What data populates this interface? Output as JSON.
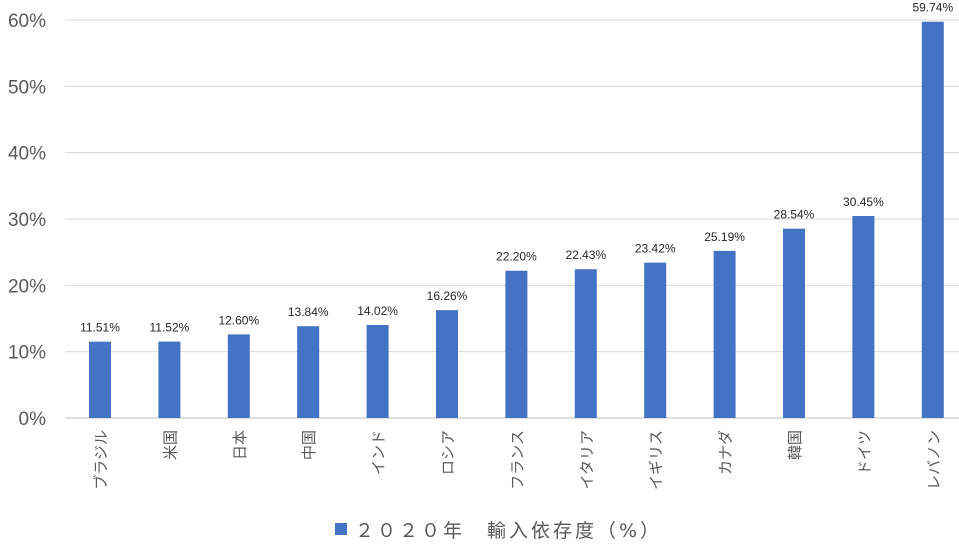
{
  "chart_data": {
    "type": "bar",
    "categories": [
      "ブラジル",
      "米国",
      "日本",
      "中国",
      "インド",
      "ロシア",
      "フランス",
      "イタリア",
      "イギリス",
      "カナダ",
      "韓国",
      "ドイツ",
      "レバノン"
    ],
    "series": [
      {
        "name": "２０２０年　輸入依存度（%）",
        "values": [
          11.51,
          11.52,
          12.6,
          13.84,
          14.02,
          16.26,
          22.2,
          22.43,
          23.42,
          25.19,
          28.54,
          30.45,
          59.74
        ],
        "labels": [
          "11.51%",
          "11.52%",
          "12.60%",
          "13.84%",
          "14.02%",
          "16.26%",
          "22.20%",
          "22.43%",
          "23.42%",
          "25.19%",
          "28.54%",
          "30.45%",
          "59.74%"
        ]
      }
    ],
    "yticks": [
      "0%",
      "10%",
      "20%",
      "30%",
      "40%",
      "50%",
      "60%"
    ],
    "ylim": [
      0,
      60
    ],
    "ytick_step": 10,
    "grid": true,
    "legend": "bottom",
    "bar_color": "#4472c4",
    "grid_color": "#d9d9d9"
  }
}
